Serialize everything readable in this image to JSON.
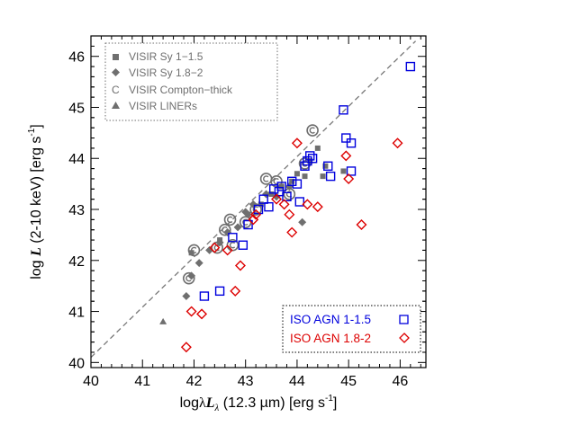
{
  "chart_data": {
    "type": "scatter",
    "xlabel": "logλL_λ (12.3 µm) [erg s⁻¹]",
    "xlabel_parts": {
      "prefix": "log",
      "lambda": "λ",
      "L": "L",
      "sub": "λ",
      "rest": " (12.3 µm) [erg s",
      "exp": "-1",
      "close": "]"
    },
    "ylabel": "log L (2-10 keV) [erg s⁻¹]",
    "ylabel_parts": {
      "prefix": "log ",
      "L": "L",
      "rest": " (2-10 keV) [erg s",
      "exp": "-1",
      "close": "]"
    },
    "xlim": [
      40,
      46.5
    ],
    "ylim": [
      39.9,
      46.4
    ],
    "xticks": [
      40,
      41,
      42,
      43,
      44,
      45,
      46
    ],
    "yticks": [
      40,
      41,
      42,
      43,
      44,
      45,
      46
    ],
    "reference_line": {
      "style": "dashed",
      "color": "#777777",
      "points": [
        [
          40,
          40.1
        ],
        [
          46.3,
          46.3
        ]
      ]
    },
    "legend_top_left": {
      "placement": "top-left",
      "color": "#6f6f6f",
      "entries": [
        {
          "marker": "square",
          "label": "VISIR Sy 1−1.5"
        },
        {
          "marker": "diamond",
          "label": "VISIR Sy 1.8−2"
        },
        {
          "marker": "C",
          "label": "VISIR Compton−thick"
        },
        {
          "marker": "triangle",
          "label": "VISIR LINERs"
        }
      ]
    },
    "legend_bottom_right": {
      "placement": "bottom-right",
      "entries": [
        {
          "marker": "open-square",
          "label": "ISO AGN 1-1.5",
          "color": "#0000dd"
        },
        {
          "marker": "open-diamond",
          "label": "ISO AGN 1.8-2",
          "color": "#dd0000"
        }
      ]
    },
    "series": [
      {
        "name": "VISIR Sy 1−1.5",
        "marker": "filled-square",
        "color": "#6f6f6f",
        "x": [
          41.95,
          42.5,
          43.05,
          43.3,
          43.5,
          43.7,
          43.9,
          44.0,
          44.15,
          44.25,
          44.4,
          44.5,
          44.55,
          44.9
        ],
        "y": [
          42.15,
          42.4,
          42.9,
          43.1,
          43.3,
          43.45,
          43.55,
          43.7,
          43.65,
          43.95,
          44.2,
          43.65,
          43.85,
          43.75
        ]
      },
      {
        "name": "VISIR Sy 1.8−2",
        "marker": "filled-diamond",
        "color": "#6f6f6f",
        "x": [
          41.85,
          41.95,
          42.1,
          42.3,
          42.5,
          42.65,
          42.85,
          43.0,
          43.15,
          43.4,
          43.6,
          43.85,
          44.1
        ],
        "y": [
          41.3,
          41.7,
          41.95,
          42.2,
          42.35,
          42.55,
          42.65,
          42.95,
          43.1,
          43.3,
          43.25,
          43.45,
          42.75
        ]
      },
      {
        "name": "VISIR Compton−thick",
        "marker": "C",
        "color": "#6f6f6f",
        "x": [
          41.9,
          42.0,
          42.45,
          42.6,
          42.7,
          42.75,
          43.0,
          43.2,
          43.4,
          43.6,
          43.85,
          44.15,
          44.3
        ],
        "y": [
          41.65,
          42.2,
          42.25,
          42.6,
          42.8,
          42.3,
          42.75,
          43.0,
          43.6,
          43.55,
          43.3,
          43.9,
          44.55
        ]
      },
      {
        "name": "VISIR LINERs",
        "marker": "filled-triangle",
        "color": "#6f6f6f",
        "x": [
          41.4
        ],
        "y": [
          40.8
        ]
      },
      {
        "name": "ISO AGN 1-1.5",
        "marker": "open-square",
        "color": "#0000dd",
        "x": [
          42.2,
          42.5,
          42.75,
          42.95,
          43.05,
          43.25,
          43.35,
          43.45,
          43.55,
          43.65,
          43.7,
          43.8,
          43.9,
          44.0,
          44.05,
          44.15,
          44.2,
          44.25,
          44.3,
          44.6,
          44.65,
          44.9,
          44.95,
          45.05,
          45.05,
          46.2
        ],
        "y": [
          41.3,
          41.4,
          42.45,
          42.3,
          42.7,
          43.0,
          43.2,
          43.05,
          43.4,
          43.35,
          43.45,
          43.25,
          43.55,
          43.5,
          43.15,
          43.85,
          43.95,
          44.05,
          44.0,
          43.85,
          43.65,
          44.95,
          44.4,
          43.75,
          44.3,
          45.8
        ]
      },
      {
        "name": "ISO AGN 1.8-2",
        "marker": "open-diamond",
        "color": "#dd0000",
        "x": [
          41.85,
          41.95,
          42.15,
          42.4,
          42.65,
          42.8,
          42.9,
          43.15,
          43.2,
          43.6,
          43.75,
          43.85,
          43.9,
          44.0,
          44.2,
          44.4,
          44.95,
          45.0,
          45.25,
          45.95
        ],
        "y": [
          40.3,
          41.0,
          40.95,
          42.25,
          42.2,
          41.4,
          41.9,
          42.8,
          42.9,
          43.2,
          43.1,
          42.9,
          42.55,
          44.3,
          43.1,
          43.05,
          44.05,
          43.6,
          42.7,
          44.3
        ]
      }
    ]
  }
}
